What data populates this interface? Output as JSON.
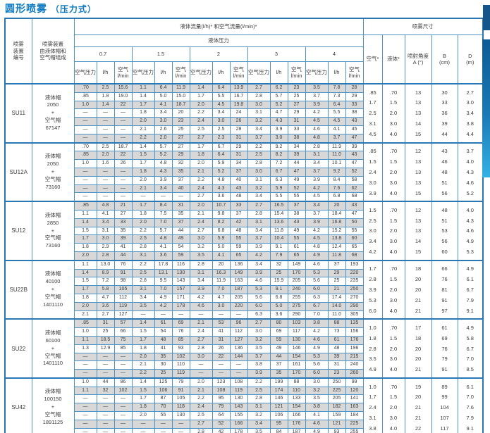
{
  "title": {
    "main": "圆形喷雾",
    "sub": "（压力式）"
  },
  "header": {
    "device_no": "喷雾\n装置\n编号",
    "assembly": "喷雾装置\n由液体帽和\n空气帽组成",
    "flow_title": "液体流量(l/h)* 和空气流量(l/min)*",
    "pressure_title": "液体压力",
    "pressures": [
      "0.7",
      "1.5",
      "2",
      "3",
      "4"
    ],
    "sub": {
      "air_pressure": "空气压力",
      "lh": "l/h",
      "air_lmin": "空气\nl/min"
    },
    "spray_title": "喷雾尺寸",
    "dims": [
      "空气*",
      "液体*",
      "喷射角度\nA (°)",
      "B\n(cm)",
      "D\n(m)"
    ]
  },
  "groups": [
    {
      "id": "SU11",
      "caps": "液体帽\n2050\n+\n空气帽\n67147",
      "rows": [
        [
          ".70",
          "2.5",
          "15.6",
          "1.1",
          "6.4",
          "11.9",
          "1.4",
          "6.4",
          "13.9",
          "2.7",
          "6.2",
          "23",
          "3.5",
          "7.8",
          "28"
        ],
        [
          ".85",
          "1.8",
          "19.0",
          "1.4",
          "5.0",
          "15.0",
          "1.7",
          "5.5",
          "16.7",
          "2.8",
          "5.7",
          "25",
          "3.7",
          "7.3",
          "29"
        ],
        [
          "1.0",
          "1.4",
          "22",
          "1.7",
          "4.1",
          "18.7",
          "2.0",
          "4.5",
          "19.8",
          "3.0",
          "5.2",
          "27",
          "3.9",
          "6.4",
          "33"
        ],
        [
          "—",
          "—",
          "—",
          "1.8",
          "3.4",
          "20",
          "2.2",
          "3.4",
          "24",
          "3.1",
          "4.7",
          "29",
          "4.2",
          "5.5",
          "38"
        ],
        [
          "—",
          "—",
          "—",
          "2.0",
          "3.0",
          "23",
          "2.4",
          "3.0",
          "26",
          "3.2",
          "4.3",
          "31",
          "4.5",
          "4.5",
          "43"
        ],
        [
          "—",
          "—",
          "—",
          "2.1",
          "2.6",
          "25",
          "2.5",
          "2.5",
          "28",
          "3.4",
          "3.9",
          "33",
          "4.6",
          "4.1",
          "45"
        ],
        [
          "—",
          "—",
          "—",
          "2.2",
          "2.0",
          "27",
          "2.7",
          "2.3",
          "31",
          "3.7",
          "3.0",
          "38",
          "4.8",
          "3.7",
          "47"
        ]
      ],
      "dims": [
        [
          ".85",
          ".70",
          "13",
          "30",
          "2.7"
        ],
        [
          "1.7",
          "1.5",
          "13",
          "33",
          "3.0"
        ],
        [
          "2.5",
          "2.0",
          "13",
          "36",
          "3.4"
        ],
        [
          "3.1",
          "3.0",
          "14",
          "39",
          "3.8"
        ],
        [
          "4.5",
          "4.0",
          "15",
          "44",
          "4.4"
        ]
      ]
    },
    {
      "id": "SU12A",
      "caps": "液体帽\n2050\n+\n空气帽\n73160",
      "rows": [
        [
          ".70",
          "2.5",
          "18.7",
          "1.4",
          "5.7",
          "27",
          "1.7",
          "6.7",
          "29",
          "2.2",
          "9.2",
          "34",
          "2.8",
          "11.9",
          "39"
        ],
        [
          ".85",
          "2.0",
          "22",
          "1.5",
          "5.2",
          "29",
          "1.8",
          "6.4",
          "31",
          "2.5",
          "8.2",
          "39",
          "3.1",
          "11.0",
          "43"
        ],
        [
          "1.0",
          "1.6",
          "26",
          "1.7",
          "4.8",
          "32",
          "2.0",
          "5.9",
          "34",
          "2.8",
          "7.2",
          "44",
          "3.4",
          "10.1",
          "47"
        ],
        [
          "—",
          "—",
          "—",
          "1.8",
          "4.3",
          "35",
          "2.1",
          "5.2",
          "37",
          "3.0",
          "6.7",
          "47",
          "3.7",
          "9.2",
          "52"
        ],
        [
          "—",
          "—",
          "—",
          "2.0",
          "3.9",
          "37",
          "2.2",
          "4.8",
          "40",
          "3.1",
          "6.3",
          "49",
          "3.9",
          "8.4",
          "58"
        ],
        [
          "—",
          "—",
          "—",
          "2.1",
          "3.4",
          "40",
          "2.4",
          "4.3",
          "43",
          "3.2",
          "5.9",
          "52",
          "4.2",
          "7.6",
          "62"
        ],
        [
          "—",
          "—",
          "—",
          "—",
          "—",
          "—",
          "2.7",
          "3.6",
          "48",
          "3.4",
          "5.5",
          "55",
          "4.5",
          "6.8",
          "68"
        ]
      ],
      "dims": [
        [
          ".85",
          ".70",
          "12",
          "43",
          "3.7"
        ],
        [
          "1.5",
          "1.5",
          "13",
          "46",
          "4.0"
        ],
        [
          "2.4",
          "2.0",
          "13",
          "48",
          "4.3"
        ],
        [
          "3.0",
          "3.0",
          "13",
          "51",
          "4.6"
        ],
        [
          "3.9",
          "4.0",
          "15",
          "56",
          "5.2"
        ]
      ]
    },
    {
      "id": "SU12",
      "caps": "液体帽\n2850\n+\n空气帽\n73160",
      "rows": [
        [
          ".85",
          "4.8",
          "21",
          "1.7",
          "8.4",
          "31",
          "2.0",
          "10.7",
          "33",
          "2.7",
          "16.5",
          "37",
          "3.4",
          "20",
          "43"
        ],
        [
          "1.1",
          "4.1",
          "27",
          "1.8",
          "7.5",
          "35",
          "2.1",
          "9.8",
          "37",
          "2.8",
          "15.4",
          "38",
          "3.7",
          "18.4",
          "47"
        ],
        [
          "1.4",
          "3.4",
          "33",
          "2.0",
          "7.0",
          "37",
          "2.4",
          "8.2",
          "42",
          "3.1",
          "13.6",
          "43",
          "3.9",
          "16.8",
          "50"
        ],
        [
          "1.5",
          "3.1",
          "35",
          "2.2",
          "5.7",
          "44",
          "2.7",
          "6.8",
          "48",
          "3.4",
          "11.8",
          "49",
          "4.2",
          "15.2",
          "55"
        ],
        [
          "1.7",
          "3.0",
          "39",
          "2.5",
          "4.8",
          "49",
          "3.0",
          "5.9",
          "55",
          "3.7",
          "10.4",
          "55",
          "4.5",
          "13.8",
          "60"
        ],
        [
          "1.8",
          "2.9",
          "41",
          "2.8",
          "4.1",
          "54",
          "3.2",
          "5.0",
          "59",
          "3.9",
          "9.1",
          "61",
          "4.8",
          "12.4",
          "65"
        ],
        [
          "2.0",
          "2.8",
          "44",
          "3.1",
          "3.6",
          "59",
          "3.5",
          "4.1",
          "65",
          "4.2",
          "7.9",
          "65",
          "4.9",
          "11.8",
          "68"
        ]
      ],
      "dims": [
        [
          "1.5",
          ".70",
          "12",
          "48",
          "4.0"
        ],
        [
          "2.5",
          "1.5",
          "13",
          "51",
          "4.3"
        ],
        [
          "3.0",
          "2.0",
          "13",
          "53",
          "4.6"
        ],
        [
          "3.4",
          "3.0",
          "14",
          "56",
          "4.9"
        ],
        [
          "4.2",
          "4.0",
          "15",
          "60",
          "5.3"
        ]
      ]
    },
    {
      "id": "SU22B",
      "caps": "液体帽\n40100\n+\n空气帽\n1401110",
      "rows": [
        [
          "1.1",
          "13.0",
          "76",
          "2.2",
          "17.8",
          "116",
          "2.8",
          "20",
          "136",
          "3.4",
          "32",
          "149",
          "4.6",
          "37",
          "193"
        ],
        [
          "1.4",
          "8.9",
          "91",
          "2.5",
          "13.1",
          "130",
          "3.1",
          "16.3",
          "149",
          "3.9",
          "25",
          "170",
          "5.3",
          "29",
          "220"
        ],
        [
          "1.5",
          "7.2",
          "98",
          "2.8",
          "9.5",
          "143",
          "3.4",
          "11.9",
          "163",
          "4.6",
          "15.9",
          "205",
          "5.6",
          "25",
          "235"
        ],
        [
          "1.7",
          "5.8",
          "105",
          "3.1",
          "7.0",
          "157",
          "3.9",
          "7.0",
          "187",
          "5.3",
          "9.1",
          "240",
          "6.0",
          "21",
          "250"
        ],
        [
          "1.8",
          "4.7",
          "112",
          "3.4",
          "4.9",
          "171",
          "4.2",
          "4.7",
          "205",
          "5.6",
          "6.8",
          "255",
          "6.3",
          "17.4",
          "270"
        ],
        [
          "2.0",
          "3.6",
          "119",
          "3.5",
          "4.2",
          "178",
          "4.6",
          "3.0",
          "220",
          "6.0",
          "5.0",
          "275",
          "6.7",
          "14.0",
          "290"
        ],
        [
          "2.1",
          "2.7",
          "127",
          "—",
          "—",
          "—",
          "—",
          "—",
          "—",
          "6.3",
          "3.6",
          "290",
          "7.0",
          "11.0",
          "305"
        ]
      ],
      "dims": [
        [
          "1.7",
          ".70",
          "18",
          "66",
          "4.9"
        ],
        [
          "2.8",
          "1.5",
          "20",
          "76",
          "6.1"
        ],
        [
          "3.9",
          "2.0",
          "20",
          "81",
          "6.7"
        ],
        [
          "5.3",
          "3.0",
          "21",
          "91",
          "7.9"
        ],
        [
          "6.0",
          "4.0",
          "21",
          "97",
          "9.1"
        ]
      ]
    },
    {
      "id": "SU22",
      "caps": "液体帽\n60100\n+\n空气帽\n1401110",
      "rows": [
        [
          ".85",
          "31",
          "57",
          "1.4",
          "61",
          "69",
          "2.1",
          "53",
          "96",
          "2.7",
          "80",
          "103",
          "3.8",
          "88",
          "135"
        ],
        [
          "1.0",
          "25",
          "66",
          "1.5",
          "54",
          "76",
          "2.4",
          "41",
          "112",
          "3.0",
          "69",
          "117",
          "4.2",
          "73",
          "156"
        ],
        [
          "1.1",
          "18.5",
          "75",
          "1.7",
          "48",
          "85",
          "2.7",
          "31",
          "127",
          "3.2",
          "59",
          "130",
          "4.6",
          "61",
          "176"
        ],
        [
          "1.3",
          "12.9",
          "85",
          "1.8",
          "41",
          "93",
          "2.8",
          "26",
          "136",
          "3.5",
          "49",
          "146",
          "4.9",
          "48",
          "196"
        ],
        [
          "—",
          "—",
          "—",
          "2.0",
          "35",
          "102",
          "3.0",
          "22",
          "144",
          "3.7",
          "44",
          "154",
          "5.3",
          "39",
          "215"
        ],
        [
          "—",
          "—",
          "—",
          "2.1",
          "30",
          "110",
          "—",
          "—",
          "—",
          "3.8",
          "37",
          "161",
          "5.6",
          "31",
          "240"
        ],
        [
          "—",
          "—",
          "—",
          "2.2",
          "25",
          "119",
          "—",
          "—",
          "—",
          "3.9",
          "35",
          "170",
          "6.0",
          "23",
          "260"
        ]
      ],
      "dims": [
        [
          "1.0",
          ".70",
          "17",
          "61",
          "4.9"
        ],
        [
          "1.8",
          "1.5",
          "18",
          "69",
          "5.8"
        ],
        [
          "2.8",
          "2.0",
          "20",
          "76",
          "6.7"
        ],
        [
          "3.5",
          "3.0",
          "20",
          "79",
          "7.0"
        ],
        [
          "4.9",
          "4.0",
          "21",
          "91",
          "8.5"
        ]
      ]
    },
    {
      "id": "SU42",
      "caps": "液体帽\n100150\n+\n空气帽\n1891125",
      "rows": [
        [
          "1.0",
          "44",
          "86",
          "1.4",
          "125",
          "79",
          "2.0",
          "123",
          "108",
          "2.2",
          "199",
          "88",
          "3.0",
          "250",
          "99"
        ],
        [
          "1.1",
          "32",
          "102",
          "1.5",
          "106",
          "91",
          "2.1",
          "108",
          "119",
          "2.5",
          "174",
          "110",
          "3.2",
          "225",
          "120"
        ],
        [
          "—",
          "—",
          "—",
          "1.7",
          "87",
          "105",
          "2.2",
          "95",
          "130",
          "2.8",
          "146",
          "133",
          "3.5",
          "205",
          "141"
        ],
        [
          "—",
          "—",
          "—",
          "1.8",
          "70",
          "118",
          "2.4",
          "79",
          "143",
          "3.1",
          "121",
          "154",
          "3.8",
          "182",
          "163"
        ],
        [
          "—",
          "—",
          "—",
          "2.0",
          "55",
          "130",
          "2.5",
          "64",
          "155",
          "3.2",
          "106",
          "166",
          "4.1",
          "159",
          "184"
        ],
        [
          "—",
          "—",
          "—",
          "—",
          "—",
          "—",
          "2.7",
          "52",
          "166",
          "3.4",
          "95",
          "176",
          "4.6",
          "121",
          "225"
        ],
        [
          "—",
          "—",
          "—",
          "—",
          "—",
          "—",
          "2.8",
          "42",
          "178",
          "3.5",
          "84",
          "187",
          "4.9",
          "93",
          "255"
        ]
      ],
      "dims": [
        [
          "1.0",
          ".70",
          "19",
          "89",
          "6.1"
        ],
        [
          "1.7",
          "1.5",
          "20",
          "99",
          "7.0"
        ],
        [
          "2.4",
          "2.0",
          "21",
          "104",
          "7.6"
        ],
        [
          "3.1",
          "3.0",
          "21",
          "107",
          "7.9"
        ],
        [
          "3.8",
          "4.0",
          "22",
          "117",
          "9.1"
        ]
      ]
    }
  ],
  "colors": {
    "accent_blue": "#0c79c1",
    "border_blue": "#4e93c5",
    "border_heavy": "#2a77b4",
    "row_shade": "#d8d8d8",
    "tab_dark": "#14568c",
    "tab_light": "#33b1e4"
  }
}
